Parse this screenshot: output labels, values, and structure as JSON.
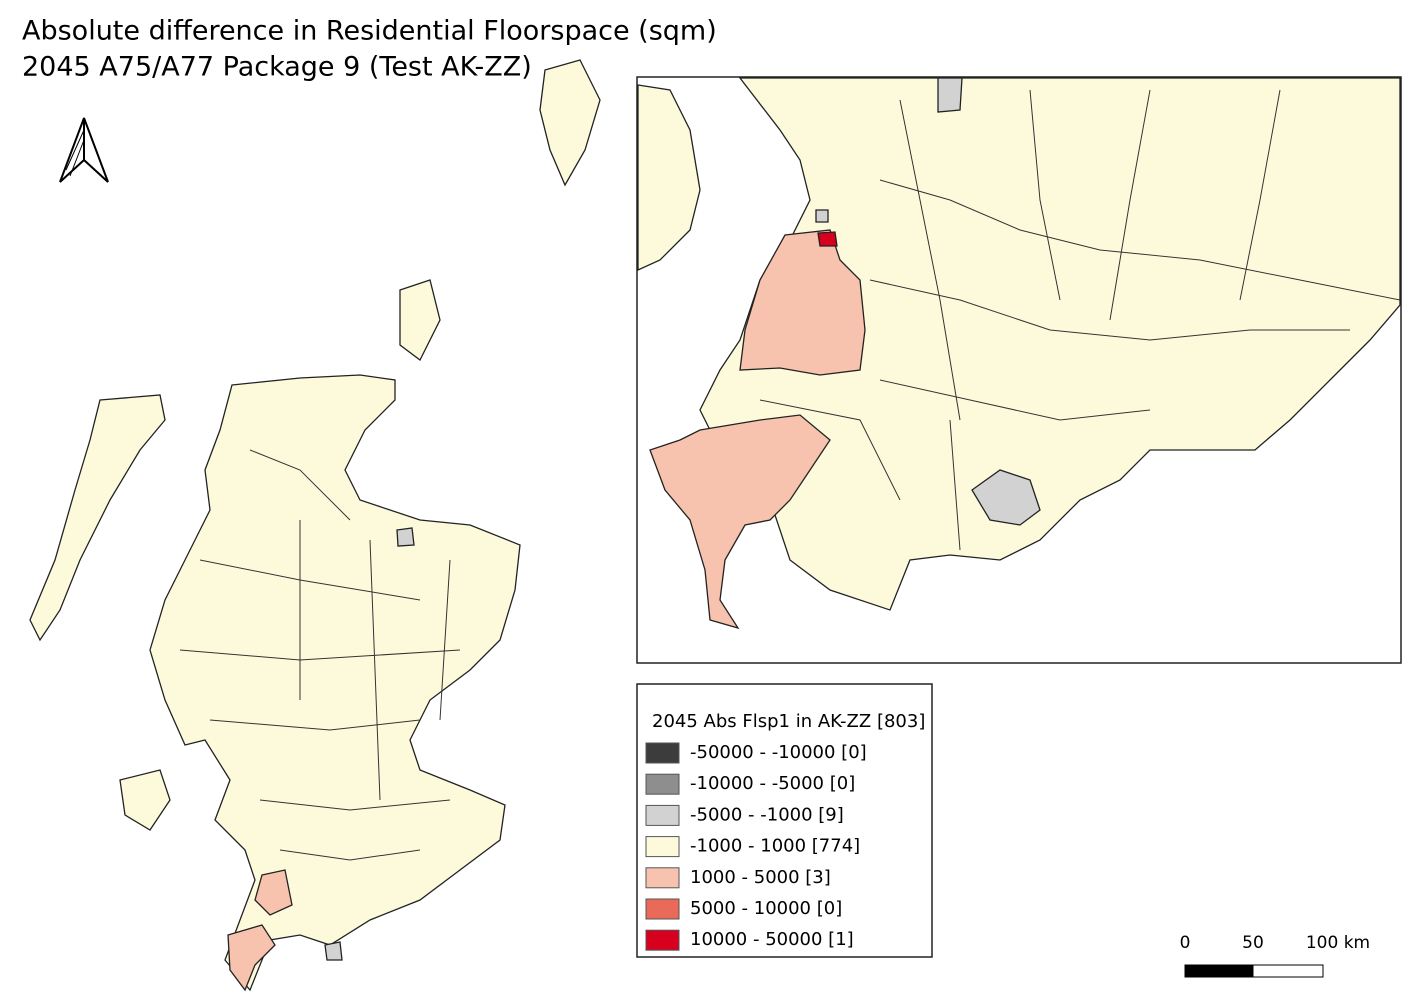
{
  "title": [
    "Absolute difference in Residential Floorspace (sqm)",
    "2045 A75/A77 Package 9 (Test AK-ZZ)"
  ],
  "legend": {
    "title": "2045 Abs Flsp1 in AK-ZZ [803]",
    "items": [
      {
        "label": "-50000 - -10000 [0]",
        "color": "#3c3c3c"
      },
      {
        "label": "-10000 - -5000 [0]",
        "color": "#8e8e8e"
      },
      {
        "label": "-5000 - -1000 [9]",
        "color": "#d2d2d2"
      },
      {
        "label": "-1000 - 1000 [774]",
        "color": "#fdfadc"
      },
      {
        "label": "1000 - 5000 [3]",
        "color": "#f7c3ae"
      },
      {
        "label": "5000 - 10000 [0]",
        "color": "#e96a58"
      },
      {
        "label": "10000 - 50000 [1]",
        "color": "#d7001f"
      }
    ]
  },
  "scale_bar": {
    "labels": [
      "0",
      "50",
      "100 km"
    ]
  }
}
